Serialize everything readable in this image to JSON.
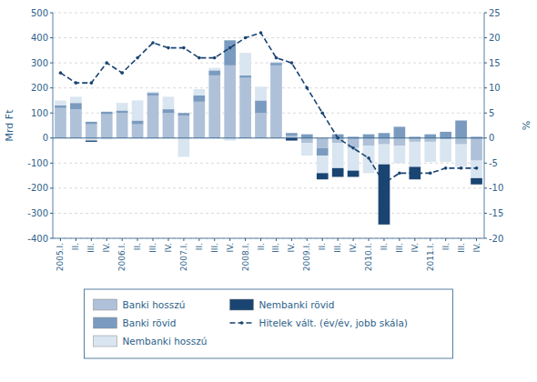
{
  "chart_data": {
    "type": "bar",
    "stacked": true,
    "categories": [
      "2005.I.",
      "II.",
      "III.",
      "IV.",
      "2006.I.",
      "II.",
      "III.",
      "IV.",
      "2007.I.",
      "II.",
      "III.",
      "IV.",
      "2008.I.",
      "II.",
      "III.",
      "IV.",
      "2009.I.",
      "II.",
      "III.",
      "IV.",
      "2010.I.",
      "II.",
      "III.",
      "IV.",
      "2011.I.",
      "II.",
      "III.",
      "IV."
    ],
    "series": [
      {
        "name": "Banki hosszú",
        "color": "#aec1d8",
        "values": [
          120,
          115,
          55,
          95,
          100,
          55,
          170,
          100,
          90,
          145,
          250,
          290,
          240,
          100,
          290,
          10,
          -20,
          -40,
          -20,
          -40,
          -30,
          -25,
          -30,
          -15,
          -15,
          -5,
          -25,
          -90
        ]
      },
      {
        "name": "Banki rövid",
        "color": "#7a9bbf",
        "values": [
          10,
          25,
          10,
          10,
          10,
          15,
          10,
          15,
          10,
          25,
          20,
          100,
          10,
          50,
          10,
          10,
          15,
          -30,
          15,
          5,
          15,
          20,
          45,
          5,
          15,
          25,
          70,
          5
        ]
      },
      {
        "name": "Nembanki hosszú",
        "color": "#d9e5f0",
        "values": [
          20,
          25,
          -10,
          -5,
          30,
          80,
          5,
          50,
          -75,
          25,
          10,
          -10,
          90,
          55,
          5,
          0,
          -50,
          -70,
          -100,
          -90,
          -110,
          -80,
          -70,
          -100,
          -80,
          -90,
          -90,
          -70
        ]
      },
      {
        "name": "Nembanki rövid",
        "color": "#1a4472",
        "values": [
          0,
          0,
          -5,
          0,
          0,
          0,
          0,
          0,
          0,
          0,
          0,
          0,
          0,
          0,
          0,
          -10,
          0,
          -25,
          -35,
          -25,
          0,
          -240,
          0,
          -50,
          0,
          0,
          0,
          -25
        ]
      },
      {
        "name": "Hitelek vált. (év/év, jobb skála)",
        "type": "line",
        "axis": "y2",
        "color": "#1a4472",
        "line_style": "dashed",
        "marker": "circle",
        "values": [
          13,
          11,
          11,
          15,
          13,
          16,
          19,
          18,
          18,
          16,
          16,
          18,
          20,
          21,
          16,
          15,
          10,
          5,
          0,
          -2,
          -4,
          -9,
          -7,
          -7,
          -7,
          -6,
          -6,
          -6
        ]
      }
    ],
    "y_label": "Mrd Ft",
    "y2_label": "%",
    "ylim": [
      -400,
      500
    ],
    "yticks": [
      -400,
      -300,
      -200,
      -100,
      0,
      100,
      200,
      300,
      400,
      500
    ],
    "y2lim": [
      -20,
      25
    ],
    "y2ticks": [
      -20,
      -15,
      -10,
      -5,
      0,
      5,
      10,
      15,
      20,
      25
    ],
    "grid": true,
    "legend": "bottom"
  }
}
